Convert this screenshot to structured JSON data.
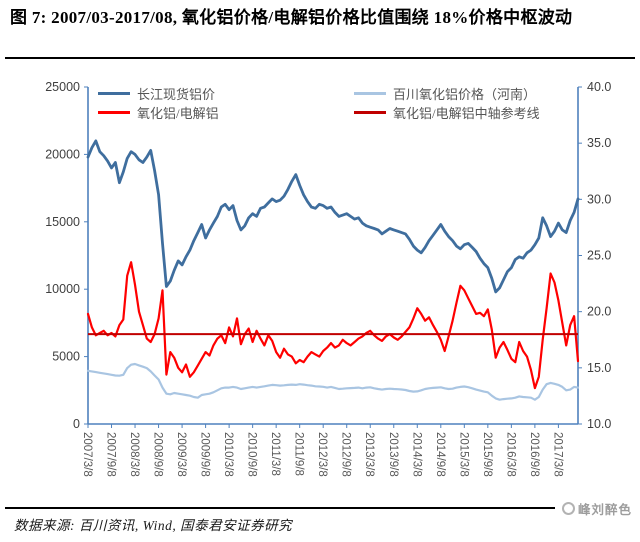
{
  "title": "图 7: 2007/03-2017/08, 氧化铝价格/电解铝价格比值围绕 18%价格中枢波动",
  "source": "数据来源: 百川资讯, Wind, 国泰君安证券研究",
  "watermark": "峰刘醉色",
  "colors": {
    "axis": "#4f81bd",
    "y_tick_label": "#3f3f3f",
    "x_tick_label": "#595959",
    "series_aluminum": "#3f6e9e",
    "series_ratio": "#ff0000",
    "series_alumina": "#a9c5e2",
    "reference_line": "#c00000"
  },
  "chart_data": {
    "type": "line",
    "title": "图 7: 2007/03-2017/08, 氧化铝价格/电解铝价格比值围绕 18%价格中枢波动",
    "x_monthly_start": "2007/3",
    "x_monthly_end": "2017/8",
    "x_tick_labels": [
      "2007/3/8",
      "2007/9/8",
      "2008/3/8",
      "2008/9/8",
      "2009/3/8",
      "2009/9/8",
      "2010/3/8",
      "2010/9/8",
      "2011/3/8",
      "2011/9/8",
      "2012/3/8",
      "2012/9/8",
      "2013/3/8",
      "2013/9/8",
      "2014/3/8",
      "2014/9/8",
      "2015/3/8",
      "2015/9/8",
      "2016/3/8",
      "2016/9/8",
      "2017/3/8"
    ],
    "x_tick_interval_months": 6,
    "axes": {
      "left": {
        "ticks": [
          "0",
          "5000",
          "10000",
          "15000",
          "20000",
          "25000"
        ],
        "range": [
          0,
          25000
        ]
      },
      "right": {
        "ticks": [
          "10.0",
          "15.0",
          "20.0",
          "25.0",
          "30.0",
          "35.0",
          "40.0"
        ],
        "range": [
          10,
          40
        ]
      }
    },
    "grid": "off",
    "legend_position": "top-inside",
    "legend": [
      {
        "label": "长江现货铝价",
        "color": "#3f6e9e"
      },
      {
        "label": "氧化铝/电解铝",
        "color": "#ff0000"
      },
      {
        "label": "百川氧化铝价格（河南）",
        "color": "#a9c5e2"
      },
      {
        "label": "氧化铝/电解铝中轴参考线",
        "color": "#c00000"
      }
    ],
    "reference_line": {
      "axis": "right",
      "value": 18,
      "color": "#c00000",
      "label": "氧化铝/电解铝中轴参考线"
    },
    "series": [
      {
        "name": "长江现货铝价",
        "axis": "left",
        "color": "#3f6e9e",
        "width": 2.8,
        "values": [
          19800,
          20500,
          21000,
          20200,
          19900,
          19500,
          19000,
          19400,
          17900,
          18700,
          19700,
          20200,
          20000,
          19600,
          19400,
          19800,
          20300,
          18800,
          17000,
          13400,
          10200,
          10600,
          11400,
          12100,
          11800,
          12400,
          12900,
          13600,
          14200,
          14800,
          13800,
          14400,
          14900,
          15400,
          16100,
          16300,
          15900,
          16200,
          15100,
          14400,
          14700,
          15300,
          15600,
          15400,
          16000,
          16100,
          16400,
          16700,
          16500,
          16600,
          16900,
          17400,
          18000,
          18500,
          17700,
          17000,
          16500,
          16100,
          16000,
          16300,
          16200,
          16000,
          16100,
          15700,
          15400,
          15500,
          15600,
          15400,
          15200,
          15300,
          14900,
          14700,
          14600,
          14500,
          14400,
          14100,
          14300,
          14500,
          14400,
          14300,
          14200,
          14100,
          13700,
          13200,
          12900,
          12700,
          13100,
          13600,
          14000,
          14400,
          14800,
          14300,
          13900,
          13600,
          13200,
          13000,
          13300,
          13400,
          13100,
          12800,
          12300,
          11900,
          11600,
          10800,
          9800,
          10100,
          10700,
          11300,
          11600,
          12200,
          12400,
          12300,
          12700,
          12900,
          13300,
          13800,
          15300,
          14700,
          13900,
          14300,
          14900,
          14400,
          14200,
          15100,
          15700,
          16700
        ]
      },
      {
        "name": "氧化铝/电解铝",
        "axis": "right",
        "color": "#ff0000",
        "width": 2.2,
        "values": [
          19.8,
          18.6,
          17.9,
          18.1,
          18.3,
          17.9,
          18.1,
          17.8,
          18.8,
          19.3,
          23.2,
          24.4,
          22.4,
          20.0,
          18.8,
          17.6,
          17.3,
          18.0,
          19.4,
          21.9,
          14.4,
          16.4,
          15.9,
          15.0,
          14.6,
          15.3,
          14.2,
          14.6,
          15.2,
          15.8,
          16.4,
          16.1,
          17.0,
          17.6,
          17.9,
          17.2,
          18.6,
          17.8,
          19.4,
          17.1,
          18.0,
          18.5,
          17.3,
          18.3,
          17.6,
          17.0,
          17.9,
          17.4,
          16.4,
          15.9,
          16.7,
          16.2,
          16.0,
          15.4,
          15.7,
          15.5,
          16.0,
          16.4,
          16.2,
          16.0,
          16.5,
          16.8,
          17.2,
          16.8,
          17.0,
          17.5,
          17.2,
          17.0,
          17.3,
          17.6,
          17.8,
          18.1,
          18.3,
          17.9,
          17.6,
          17.4,
          17.8,
          18.0,
          17.7,
          17.5,
          17.8,
          18.2,
          18.6,
          19.4,
          20.3,
          19.8,
          19.2,
          19.5,
          18.8,
          18.2,
          17.5,
          16.5,
          17.8,
          19.2,
          20.8,
          22.3,
          21.9,
          21.2,
          20.5,
          19.8,
          19.9,
          19.6,
          20.2,
          18.4,
          15.9,
          16.8,
          17.3,
          16.6,
          15.8,
          15.5,
          17.3,
          16.5,
          16.0,
          14.8,
          13.2,
          14.2,
          17.5,
          20.3,
          23.4,
          22.6,
          21.0,
          19.0,
          17.0,
          18.8,
          19.6,
          15.6
        ]
      },
      {
        "name": "百川氧化铝价格（河南）",
        "axis": "left",
        "color": "#a9c5e2",
        "width": 2.2,
        "values": [
          3950,
          3900,
          3850,
          3800,
          3750,
          3700,
          3650,
          3600,
          3580,
          3650,
          4150,
          4400,
          4450,
          4350,
          4250,
          4150,
          3900,
          3600,
          3300,
          2700,
          2250,
          2200,
          2300,
          2250,
          2200,
          2150,
          2100,
          2000,
          1950,
          2150,
          2200,
          2250,
          2350,
          2500,
          2650,
          2700,
          2700,
          2750,
          2700,
          2600,
          2650,
          2700,
          2750,
          2700,
          2750,
          2800,
          2850,
          2900,
          2880,
          2850,
          2870,
          2900,
          2920,
          2900,
          2950,
          2920,
          2880,
          2850,
          2800,
          2780,
          2760,
          2700,
          2750,
          2680,
          2600,
          2620,
          2650,
          2660,
          2680,
          2700,
          2650,
          2700,
          2720,
          2650,
          2600,
          2550,
          2600,
          2620,
          2600,
          2580,
          2560,
          2520,
          2450,
          2400,
          2420,
          2500,
          2600,
          2650,
          2680,
          2700,
          2720,
          2650,
          2600,
          2620,
          2700,
          2750,
          2780,
          2730,
          2650,
          2550,
          2480,
          2400,
          2350,
          2100,
          1900,
          1800,
          1850,
          1880,
          1900,
          1950,
          2050,
          2000,
          1980,
          1950,
          1800,
          2000,
          2550,
          2950,
          3050,
          2980,
          2900,
          2750,
          2500,
          2550,
          2750,
          2700
        ]
      }
    ]
  }
}
